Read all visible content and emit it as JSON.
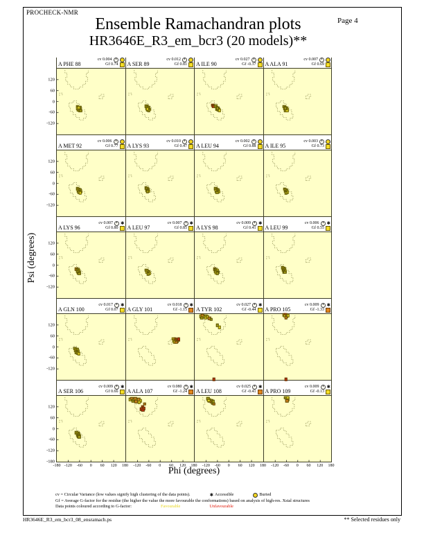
{
  "header": {
    "app_name": "PROCHECK-NMR",
    "page_label": "Page  4",
    "title": "Ensemble Ramachandran plots",
    "subtitle": "HR3646E_R3_em_bcr3 (20 models)**"
  },
  "labels": {
    "cv_prefix": "cv",
    "gf_prefix": "Gf"
  },
  "legend": {
    "cv_line": "cv = Circular Variance (low values signify high clustering of the data points).",
    "accessible_label": "Accessible",
    "buried_label": "Buried",
    "gf_line": "Gf = Average G-factor for the residue (the higher the value the more favourable the conformations)  based on analysis of high-res. Xstal structures",
    "colour_line": "Data points coloured according to G-factor:",
    "favourable_label": "Favourable",
    "unfavourable_label": "Unfavourable"
  },
  "footer": {
    "filename": "HR3646E_R3_em_bcr3_08_ensramach.ps",
    "note": "** Selected residues only"
  },
  "chart_data": {
    "type": "scatter",
    "title": "Ensemble Ramachandran plots",
    "xlabel": "Phi (degrees)",
    "ylabel": "Psi (degrees)",
    "x_range": [
      -180,
      180
    ],
    "y_range": [
      -180,
      180
    ],
    "x_ticks": [
      -180,
      -120,
      -60,
      0,
      60,
      120,
      180
    ],
    "y_ticks": [
      120,
      60,
      0,
      -60,
      -120
    ],
    "y_min_label": "-180",
    "grid": false,
    "plot_bg": "#ffffc8",
    "point_colors": {
      "y": "#e8d820",
      "d": "#a8a018",
      "o": "#cd7f1e",
      "r": "#cc2814"
    },
    "subplots": [
      {
        "residue": "A PHE 88",
        "cv": "0.004",
        "gf": "0.74",
        "exposure": "buried",
        "gf_square": "yellow",
        "points": [
          [
            -71,
            -28,
            "d"
          ],
          [
            -65,
            -31,
            "y"
          ],
          [
            -59,
            -34,
            "d"
          ],
          [
            -69,
            -37,
            "y"
          ],
          [
            -63,
            -40,
            "d"
          ],
          [
            -57,
            -43,
            "y"
          ],
          [
            -66,
            -46,
            "d"
          ],
          [
            -60,
            -49,
            "y"
          ],
          [
            -54,
            -51,
            "d"
          ],
          [
            -64,
            -34,
            "y"
          ]
        ]
      },
      {
        "residue": "A SER 89",
        "cv": "0.012",
        "gf": "0.81",
        "exposure": "buried",
        "gf_square": "yellow",
        "points": [
          [
            -72,
            -26,
            "d"
          ],
          [
            -66,
            -30,
            "y"
          ],
          [
            -60,
            -33,
            "d"
          ],
          [
            -68,
            -36,
            "y"
          ],
          [
            -62,
            -40,
            "d"
          ],
          [
            -56,
            -43,
            "y"
          ],
          [
            -64,
            -46,
            "d"
          ],
          [
            -58,
            -49,
            "d"
          ],
          [
            -66,
            -41,
            "y"
          ]
        ]
      },
      {
        "residue": "A ILE 90",
        "cv": "0.027",
        "gf": "-0.37",
        "exposure": "buried",
        "gf_square": "yellow",
        "points": [
          [
            -84,
            -20,
            "r"
          ],
          [
            -77,
            -23,
            "o"
          ],
          [
            -80,
            -28,
            "r"
          ],
          [
            -70,
            -26,
            "d"
          ],
          [
            -64,
            -31,
            "y"
          ],
          [
            -58,
            -35,
            "d"
          ],
          [
            -62,
            -40,
            "y"
          ],
          [
            -55,
            -44,
            "d"
          ],
          [
            -50,
            -48,
            "y"
          ],
          [
            -60,
            -36,
            "d"
          ]
        ]
      },
      {
        "residue": "A ALA 91",
        "cv": "0.007",
        "gf": "0.69",
        "exposure": "buried",
        "gf_square": "yellow",
        "points": [
          [
            -70,
            -28,
            "d"
          ],
          [
            -64,
            -32,
            "y"
          ],
          [
            -58,
            -35,
            "d"
          ],
          [
            -66,
            -39,
            "y"
          ],
          [
            -60,
            -42,
            "d"
          ],
          [
            -54,
            -45,
            "y"
          ],
          [
            -62,
            -48,
            "d"
          ],
          [
            -56,
            -51,
            "y"
          ],
          [
            -65,
            -36,
            "d"
          ]
        ]
      },
      {
        "residue": "A MET 92",
        "cv": "0.006",
        "gf": "0.77",
        "exposure": "buried",
        "gf_square": "yellow",
        "points": [
          [
            -71,
            -29,
            "d"
          ],
          [
            -65,
            -33,
            "y"
          ],
          [
            -59,
            -36,
            "d"
          ],
          [
            -67,
            -40,
            "y"
          ],
          [
            -61,
            -43,
            "d"
          ],
          [
            -55,
            -46,
            "y"
          ],
          [
            -63,
            -49,
            "d"
          ],
          [
            -57,
            -52,
            "y"
          ]
        ]
      },
      {
        "residue": "A LYS 93",
        "cv": "0.010",
        "gf": "0.47",
        "exposure": "buried",
        "gf_square": "yellow",
        "points": [
          [
            -74,
            -25,
            "d"
          ],
          [
            -68,
            -29,
            "y"
          ],
          [
            -62,
            -32,
            "d"
          ],
          [
            -70,
            -36,
            "y"
          ],
          [
            -64,
            -39,
            "d"
          ],
          [
            -58,
            -42,
            "y"
          ],
          [
            -66,
            -45,
            "d"
          ]
        ]
      },
      {
        "residue": "A LEU 94",
        "cv": "0.002",
        "gf": "0.88",
        "exposure": "buried",
        "gf_square": "yellow",
        "points": [
          [
            -70,
            -30,
            "d"
          ],
          [
            -64,
            -34,
            "y"
          ],
          [
            -58,
            -37,
            "d"
          ],
          [
            -66,
            -41,
            "y"
          ],
          [
            -60,
            -44,
            "d"
          ],
          [
            -54,
            -47,
            "y"
          ],
          [
            -62,
            -50,
            "d"
          ]
        ]
      },
      {
        "residue": "A ILE 95",
        "cv": "0.003",
        "gf": "0.73",
        "exposure": "buried",
        "gf_square": "yellow",
        "points": [
          [
            -69,
            -32,
            "d"
          ],
          [
            -63,
            -36,
            "y"
          ],
          [
            -57,
            -39,
            "d"
          ],
          [
            -65,
            -43,
            "y"
          ],
          [
            -59,
            -46,
            "d"
          ],
          [
            -53,
            -49,
            "y"
          ],
          [
            -61,
            -52,
            "d"
          ]
        ]
      },
      {
        "residue": "A LYS 96",
        "cv": "0.007",
        "gf": "0.80",
        "exposure": "accessible",
        "gf_square": "yellow",
        "points": [
          [
            -76,
            -22,
            "o"
          ],
          [
            -70,
            -26,
            "d"
          ],
          [
            -64,
            -30,
            "y"
          ],
          [
            -72,
            -34,
            "d"
          ],
          [
            -66,
            -37,
            "y"
          ],
          [
            -60,
            -40,
            "d"
          ],
          [
            -68,
            -43,
            "y"
          ],
          [
            -62,
            -46,
            "d"
          ]
        ]
      },
      {
        "residue": "A LEU 97",
        "cv": "0.007",
        "gf": "0.85",
        "exposure": "accessible",
        "gf_square": "yellow",
        "points": [
          [
            -71,
            -28,
            "d"
          ],
          [
            -65,
            -32,
            "y"
          ],
          [
            -59,
            -35,
            "d"
          ],
          [
            -67,
            -39,
            "y"
          ],
          [
            -61,
            -42,
            "d"
          ],
          [
            -55,
            -45,
            "y"
          ],
          [
            -63,
            -48,
            "d"
          ]
        ]
      },
      {
        "residue": "A LYS 98",
        "cv": "0.009",
        "gf": "0.41",
        "exposure": "accessible",
        "gf_square": "yellow",
        "points": [
          [
            -75,
            -21,
            "o"
          ],
          [
            -69,
            -25,
            "d"
          ],
          [
            -63,
            -29,
            "y"
          ],
          [
            -71,
            -33,
            "d"
          ],
          [
            -65,
            -36,
            "y"
          ],
          [
            -59,
            -39,
            "d"
          ],
          [
            -67,
            -42,
            "y"
          ],
          [
            -61,
            -45,
            "d"
          ]
        ]
      },
      {
        "residue": "A LEU 99",
        "cv": "0.006",
        "gf": "0.55",
        "exposure": "accessible",
        "gf_square": "yellow",
        "points": [
          [
            -80,
            -14,
            "d"
          ],
          [
            -74,
            -18,
            "y"
          ],
          [
            -68,
            -22,
            "d"
          ],
          [
            -76,
            -26,
            "y"
          ],
          [
            -70,
            -29,
            "d"
          ],
          [
            -64,
            -32,
            "y"
          ],
          [
            -72,
            -36,
            "d"
          ],
          [
            -66,
            -39,
            "d"
          ]
        ]
      },
      {
        "residue": "A GLN 100",
        "cv": "0.017",
        "gf": "0.07",
        "exposure": "accessible",
        "gf_square": "yellow",
        "points": [
          [
            -84,
            -8,
            "d"
          ],
          [
            -78,
            -12,
            "y"
          ],
          [
            -72,
            -15,
            "d"
          ],
          [
            -80,
            -19,
            "y"
          ],
          [
            -74,
            -23,
            "d"
          ],
          [
            -68,
            -26,
            "y"
          ],
          [
            -76,
            -30,
            "d"
          ],
          [
            -70,
            -33,
            "d"
          ],
          [
            -64,
            -36,
            "y"
          ]
        ]
      },
      {
        "residue": "A GLY 101",
        "cv": "0.018",
        "gf": "-1.15",
        "exposure": "accessible",
        "gf_square": "orange",
        "points": [
          [
            72,
            44,
            "y"
          ],
          [
            80,
            42,
            "o"
          ],
          [
            88,
            40,
            "r"
          ],
          [
            96,
            37,
            "o"
          ],
          [
            74,
            36,
            "y"
          ],
          [
            83,
            33,
            "r"
          ],
          [
            91,
            30,
            "o"
          ],
          [
            77,
            28,
            "y"
          ],
          [
            98,
            43,
            "r"
          ],
          [
            86,
            25,
            "o"
          ]
        ]
      },
      {
        "residue": "A TYR 102",
        "cv": "0.027",
        "gf": "-0.44",
        "exposure": "accessible",
        "gf_square": "yellow",
        "points": [
          [
            -148,
            168,
            "y"
          ],
          [
            -138,
            172,
            "o"
          ],
          [
            -129,
            166,
            "y"
          ],
          [
            -120,
            170,
            "d"
          ],
          [
            -111,
            163,
            "y"
          ],
          [
            -102,
            157,
            "o"
          ],
          [
            -93,
            150,
            "d"
          ],
          [
            -123,
            158,
            "y"
          ],
          [
            -142,
            159,
            "d"
          ],
          [
            -60,
            118,
            "d"
          ],
          [
            -50,
            108,
            "y"
          ],
          [
            -78,
            -177,
            "r"
          ]
        ]
      },
      {
        "residue": "A PRO 105",
        "cv": "0.009",
        "gf": "-1.33",
        "exposure": "accessible",
        "gf_square": "orange",
        "points": [
          [
            -72,
            176,
            "o"
          ],
          [
            -63,
            178,
            "r"
          ],
          [
            -54,
            174,
            "o"
          ],
          [
            -67,
            170,
            "y"
          ],
          [
            -58,
            167,
            "d"
          ],
          [
            -49,
            171,
            "y"
          ],
          [
            -61,
            161,
            "o"
          ],
          [
            -60,
            -177,
            "r"
          ]
        ]
      },
      {
        "residue": "A SER 106",
        "cv": "0.009",
        "gf": "0.66",
        "exposure": "accessible",
        "gf_square": "yellow",
        "points": [
          [
            -76,
            -22,
            "d"
          ],
          [
            -70,
            -26,
            "y"
          ],
          [
            -64,
            -29,
            "d"
          ],
          [
            -72,
            -33,
            "y"
          ],
          [
            -66,
            -36,
            "d"
          ],
          [
            -60,
            -39,
            "y"
          ],
          [
            -68,
            -42,
            "d"
          ],
          [
            -62,
            -45,
            "d"
          ]
        ]
      },
      {
        "residue": "A ALA 107",
        "cv": "0.080",
        "gf": "-1.24",
        "exposure": "accessible",
        "gf_square": "orange",
        "points": [
          [
            -157,
            161,
            "y"
          ],
          [
            -148,
            165,
            "o"
          ],
          [
            -139,
            158,
            "y"
          ],
          [
            -130,
            163,
            "o"
          ],
          [
            -121,
            156,
            "y"
          ],
          [
            -112,
            160,
            "o"
          ],
          [
            -103,
            152,
            "y"
          ],
          [
            -143,
            151,
            "d"
          ],
          [
            -126,
            149,
            "o"
          ],
          [
            -109,
            145,
            "y"
          ],
          [
            -80,
            136,
            "o"
          ],
          [
            -92,
            118,
            "r"
          ],
          [
            -85,
            111,
            "r"
          ],
          [
            -96,
            108,
            "r"
          ],
          [
            -89,
            101,
            "r"
          ]
        ]
      },
      {
        "residue": "A LEU 108",
        "cv": "0.025",
        "gf": "-0.41",
        "exposure": "accessible",
        "gf_square": "orange",
        "points": [
          [
            -109,
            163,
            "d"
          ],
          [
            -100,
            158,
            "y"
          ],
          [
            -92,
            154,
            "d"
          ],
          [
            -102,
            150,
            "y"
          ],
          [
            -94,
            146,
            "o"
          ],
          [
            -85,
            141,
            "d"
          ],
          [
            -78,
            135,
            "o"
          ],
          [
            -106,
            155,
            "y"
          ],
          [
            -83,
            148,
            "d"
          ]
        ]
      },
      {
        "residue": "A PRO 109",
        "cv": "0.009",
        "gf": "-0.13",
        "exposure": "accessible",
        "gf_square": "yellow",
        "points": [
          [
            -62,
            169,
            "d"
          ],
          [
            -54,
            165,
            "y"
          ],
          [
            -58,
            158,
            "d"
          ],
          [
            -49,
            161,
            "y"
          ],
          [
            -55,
            152,
            "o"
          ],
          [
            -51,
            170,
            "y"
          ]
        ]
      }
    ]
  }
}
